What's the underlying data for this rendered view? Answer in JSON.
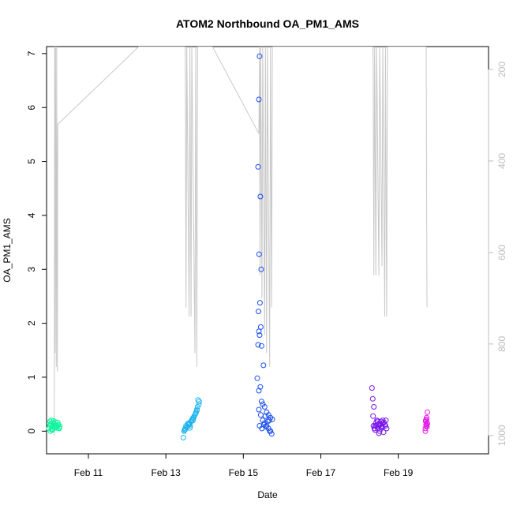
{
  "chart_data": {
    "type": "scatter",
    "title": "ATOM2 Northbound OA_PM1_AMS",
    "xlabel": "Date",
    "ylabel": "OA_PM1_AMS",
    "x_unit": "days (Feb 2017 day-of-month)",
    "xlim": [
      9.92,
      21.33
    ],
    "ylim": [
      -0.42,
      7.13
    ],
    "y_ticks": [
      0,
      1,
      2,
      3,
      4,
      5,
      6,
      7
    ],
    "x_ticks": [
      {
        "value": 11,
        "label": "Feb 11"
      },
      {
        "value": 13,
        "label": "Feb 13"
      },
      {
        "value": 15,
        "label": "Feb 15"
      },
      {
        "value": 17,
        "label": "Feb 17"
      },
      {
        "value": 19,
        "label": "Feb 19"
      }
    ],
    "right_axis": {
      "reversed": true,
      "lim": [
        1040,
        150
      ],
      "ticks": [
        200,
        400,
        600,
        800,
        1000
      ],
      "color": "#bdbdbd"
    },
    "grid": false,
    "legend": "none",
    "altitude_trace": {
      "color": "#c8c8c8",
      "points": [
        [
          10.12,
          1000
        ],
        [
          10.13,
          150
        ],
        [
          10.14,
          820
        ],
        [
          10.15,
          150
        ],
        [
          10.17,
          850
        ],
        [
          10.18,
          150
        ],
        [
          10.2,
          860
        ],
        [
          10.21,
          320
        ],
        [
          12.3,
          150
        ],
        [
          13.5,
          150
        ],
        [
          13.52,
          720
        ],
        [
          13.54,
          150
        ],
        [
          13.6,
          740
        ],
        [
          13.62,
          150
        ],
        [
          13.65,
          740
        ],
        [
          13.67,
          150
        ],
        [
          13.75,
          820
        ],
        [
          13.77,
          150
        ],
        [
          13.8,
          850
        ],
        [
          13.82,
          150
        ],
        [
          14.2,
          150
        ],
        [
          15.4,
          340
        ],
        [
          15.42,
          150
        ],
        [
          15.43,
          650
        ],
        [
          15.45,
          150
        ],
        [
          15.48,
          700
        ],
        [
          15.5,
          150
        ],
        [
          15.55,
          780
        ],
        [
          15.57,
          150
        ],
        [
          15.6,
          820
        ],
        [
          15.62,
          150
        ],
        [
          15.68,
          850
        ],
        [
          15.7,
          150
        ],
        [
          15.73,
          720
        ],
        [
          15.75,
          150
        ],
        [
          18.35,
          150
        ],
        [
          18.37,
          650
        ],
        [
          18.39,
          150
        ],
        [
          18.42,
          650
        ],
        [
          18.44,
          150
        ],
        [
          18.5,
          650
        ],
        [
          18.52,
          150
        ],
        [
          18.58,
          630
        ],
        [
          18.6,
          150
        ],
        [
          18.65,
          740
        ],
        [
          18.67,
          150
        ],
        [
          18.7,
          740
        ],
        [
          18.72,
          150
        ],
        [
          19.72,
          150
        ],
        [
          19.74,
          720
        ]
      ]
    },
    "series": [
      {
        "color": "#14f5a0",
        "x": [
          9.98,
          10.02,
          10.06,
          10.1,
          10.14,
          10.18,
          10.22,
          10.26,
          10.01,
          10.05,
          10.09,
          10.13,
          10.17,
          10.21,
          10.25,
          10.0,
          10.04,
          10.08,
          10.12,
          10.16,
          10.2,
          10.24,
          10.03,
          10.07,
          10.11,
          10.15,
          10.19,
          10.23,
          10.02,
          10.1
        ],
        "y": [
          0.05,
          0.12,
          0.08,
          0.15,
          0.1,
          0.06,
          0.12,
          0.09,
          0.18,
          0.03,
          0.14,
          0.07,
          0.11,
          0.16,
          0.05,
          0.1,
          0.2,
          0.04,
          0.13,
          0.08,
          0.1,
          0.06,
          0.14,
          0.02,
          0.09,
          0.17,
          0.07,
          0.12,
          0.0,
          0.19
        ]
      },
      {
        "color": "#1eb4ee",
        "x": [
          13.45,
          13.48,
          13.5,
          13.52,
          13.55,
          13.58,
          13.6,
          13.62,
          13.65,
          13.68,
          13.7,
          13.72,
          13.75,
          13.78,
          13.8,
          13.82,
          13.85,
          13.47,
          13.53,
          13.57,
          13.63,
          13.67,
          13.73,
          13.77,
          13.83,
          13.5,
          13.6,
          13.7,
          13.8,
          13.86
        ],
        "y": [
          -0.12,
          0.02,
          0.05,
          0.1,
          0.08,
          0.12,
          0.15,
          0.06,
          0.18,
          0.22,
          0.2,
          0.25,
          0.3,
          0.35,
          0.4,
          0.45,
          0.5,
          0.0,
          0.07,
          0.14,
          0.1,
          0.2,
          0.28,
          0.33,
          0.58,
          0.03,
          0.12,
          0.24,
          0.38,
          0.55
        ]
      },
      {
        "color": "#1a4ef0",
        "x": [
          15.42,
          15.4,
          15.38,
          15.44,
          15.41,
          15.46,
          15.43,
          15.39,
          15.4,
          15.45,
          15.42,
          15.47,
          15.38,
          15.52,
          15.36,
          15.4,
          15.44,
          15.5,
          15.55,
          15.6,
          15.65,
          15.7,
          15.75,
          15.4,
          15.45,
          15.5,
          15.55,
          15.6,
          15.65,
          15.7,
          15.42,
          15.48,
          15.53,
          15.58,
          15.63,
          15.68,
          15.73,
          15.47,
          15.57,
          15.67
        ],
        "y": [
          6.95,
          6.15,
          4.9,
          4.35,
          3.28,
          3.0,
          2.38,
          2.22,
          1.85,
          1.93,
          1.78,
          1.58,
          1.6,
          1.22,
          0.98,
          0.75,
          0.82,
          0.5,
          0.45,
          0.35,
          0.3,
          0.25,
          0.22,
          0.4,
          0.3,
          0.2,
          0.15,
          0.1,
          0.05,
          0.0,
          0.1,
          0.05,
          0.12,
          0.08,
          0.18,
          0.0,
          -0.05,
          0.55,
          0.28,
          0.2
        ]
      },
      {
        "color": "#7a14ea",
        "x": [
          18.32,
          18.35,
          18.38,
          18.4,
          18.42,
          18.45,
          18.48,
          18.5,
          18.52,
          18.55,
          18.58,
          18.6,
          18.62,
          18.65,
          18.68,
          18.34,
          18.37,
          18.43,
          18.47,
          18.53,
          18.57,
          18.63,
          18.67,
          18.7,
          18.4,
          18.5,
          18.6,
          18.36,
          18.46,
          18.56
        ],
        "y": [
          0.8,
          0.28,
          0.05,
          0.1,
          0.15,
          0.2,
          0.08,
          0.12,
          0.0,
          0.18,
          0.1,
          0.15,
          -0.02,
          0.12,
          0.2,
          0.6,
          0.45,
          0.1,
          0.05,
          0.12,
          0.08,
          0.16,
          0.1,
          0.05,
          0.02,
          -0.04,
          0.2,
          0.1,
          0.18,
          0.06
        ]
      },
      {
        "color": "#e41ae8",
        "x": [
          19.7,
          19.72,
          19.74,
          19.71,
          19.73,
          19.75,
          19.7,
          19.72,
          19.74,
          19.71,
          19.73,
          19.75
        ],
        "y": [
          0.05,
          0.1,
          0.15,
          0.2,
          0.25,
          0.35,
          0.0,
          0.12,
          0.08,
          0.18,
          0.22,
          0.14
        ]
      }
    ]
  }
}
